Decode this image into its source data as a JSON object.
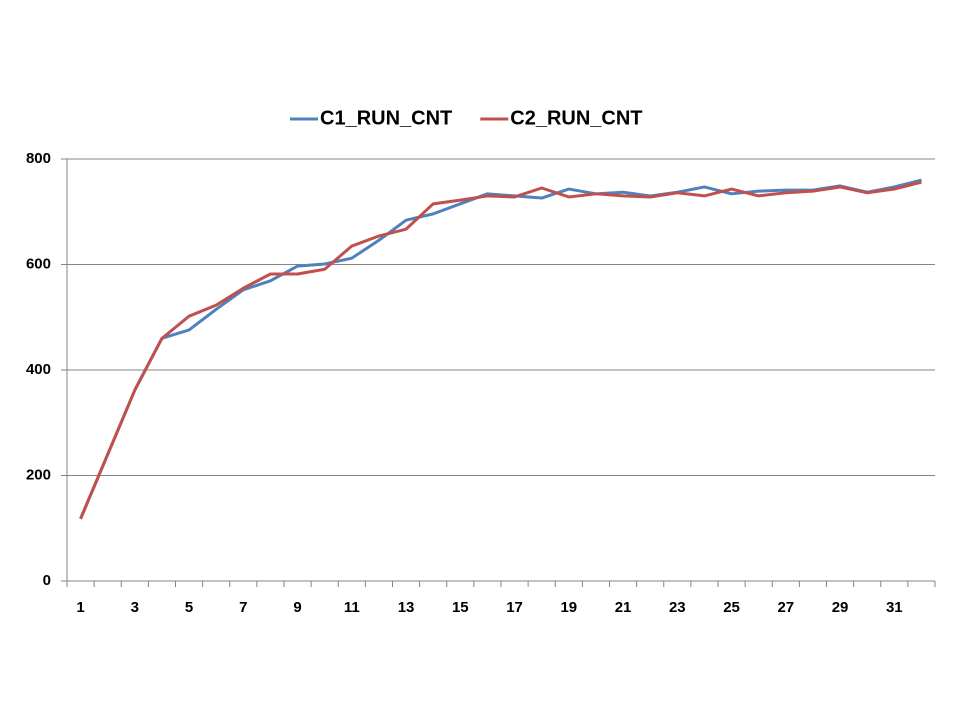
{
  "chart_data": {
    "type": "line",
    "categories": [
      1,
      null,
      3,
      null,
      5,
      null,
      7,
      null,
      9,
      null,
      11,
      null,
      13,
      null,
      15,
      null,
      17,
      null,
      19,
      null,
      21,
      null,
      23,
      null,
      25,
      null,
      27,
      null,
      29,
      null,
      31,
      null
    ],
    "series": [
      {
        "name": "C1_RUN_CNT",
        "color": "#4f81bd",
        "values": [
          118,
          240,
          362,
          460,
          476,
          515,
          552,
          569,
          597,
          601,
          612,
          646,
          684,
          696,
          715,
          734,
          730,
          726,
          743,
          734,
          737,
          730,
          737,
          747,
          734,
          739,
          741,
          741,
          749,
          737,
          747,
          760
        ]
      },
      {
        "name": "C2_RUN_CNT",
        "color": "#c0504d",
        "values": [
          118,
          240,
          362,
          460,
          502,
          523,
          555,
          582,
          582,
          591,
          635,
          654,
          667,
          715,
          722,
          730,
          728,
          745,
          728,
          734,
          730,
          728,
          736,
          730,
          743,
          730,
          736,
          739,
          747,
          736,
          743,
          756
        ]
      }
    ],
    "ylim": [
      0,
      800
    ],
    "yticks": [
      0,
      200,
      400,
      600,
      800
    ],
    "grid": true,
    "legend": "top"
  }
}
